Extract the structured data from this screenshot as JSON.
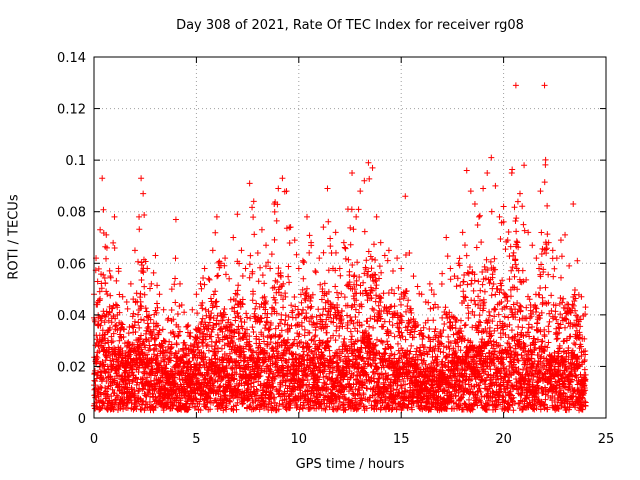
{
  "chart_data": {
    "type": "scatter",
    "title": "Day 308 of 2021, Rate Of TEC Index for receiver rg08",
    "xlabel": "GPS time / hours",
    "ylabel": "ROTI / TECUs",
    "xlim": [
      0,
      25
    ],
    "ylim": [
      0,
      0.14
    ],
    "xticks": [
      "0",
      "5",
      "10",
      "15",
      "20",
      "25"
    ],
    "yticks": [
      "0",
      "0.02",
      "0.04",
      "0.06",
      "0.08",
      "0.1",
      "0.12",
      "0.14"
    ],
    "grid": true,
    "marker": "+",
    "marker_color": "#ff0000",
    "series": [
      {
        "x": [
          0.0,
          0.1,
          0.3,
          0.4,
          0.6,
          0.8,
          1.0,
          1.2,
          1.4,
          1.6,
          1.8,
          2.0,
          2.2,
          2.3,
          2.4,
          2.6,
          2.8,
          3.0,
          3.2,
          3.4,
          3.6,
          3.8,
          4.0,
          4.2,
          4.4,
          4.6,
          4.8,
          5.0,
          5.2,
          5.4,
          5.6,
          5.8,
          6.0,
          6.2,
          6.4,
          6.6,
          6.8,
          7.0,
          7.2,
          7.4,
          7.6,
          7.8,
          8.0,
          8.2,
          8.4,
          8.6,
          8.8,
          9.0,
          9.2,
          9.4,
          9.6,
          9.8,
          10.0,
          10.2,
          10.4,
          10.6,
          10.8,
          11.0,
          11.2,
          11.4,
          11.6,
          11.8,
          12.0,
          12.2,
          12.4,
          12.6,
          12.8,
          13.0,
          13.2,
          13.4,
          13.6,
          13.8,
          14.0,
          14.2,
          14.4,
          14.6,
          14.8,
          15.0,
          15.2,
          15.4,
          15.6,
          15.8,
          16.0,
          16.2,
          16.4,
          16.6,
          16.8,
          17.0,
          17.2,
          17.4,
          17.6,
          17.8,
          18.0,
          18.2,
          18.4,
          18.6,
          18.8,
          19.0,
          19.2,
          19.4,
          19.6,
          19.8,
          20.0,
          20.2,
          20.4,
          20.6,
          20.8,
          21.0,
          21.2,
          21.4,
          21.6,
          21.8,
          22.0,
          22.2,
          22.4,
          22.6,
          22.8,
          23.0,
          23.2,
          23.4,
          23.6,
          23.8,
          24.0
        ],
        "y_max": [
          0.048,
          0.062,
          0.073,
          0.093,
          0.071,
          0.055,
          0.078,
          0.058,
          0.047,
          0.045,
          0.052,
          0.065,
          0.078,
          0.093,
          0.087,
          0.058,
          0.052,
          0.063,
          0.048,
          0.042,
          0.038,
          0.05,
          0.077,
          0.052,
          0.041,
          0.036,
          0.042,
          0.048,
          0.052,
          0.058,
          0.054,
          0.065,
          0.078,
          0.06,
          0.062,
          0.054,
          0.07,
          0.079,
          0.065,
          0.058,
          0.091,
          0.084,
          0.064,
          0.073,
          0.067,
          0.058,
          0.083,
          0.089,
          0.093,
          0.088,
          0.074,
          0.069,
          0.058,
          0.061,
          0.078,
          0.068,
          0.057,
          0.062,
          0.074,
          0.089,
          0.064,
          0.072,
          0.058,
          0.068,
          0.081,
          0.095,
          0.078,
          0.088,
          0.092,
          0.099,
          0.097,
          0.078,
          0.068,
          0.063,
          0.065,
          0.057,
          0.062,
          0.058,
          0.086,
          0.064,
          0.055,
          0.051,
          0.048,
          0.045,
          0.052,
          0.048,
          0.043,
          0.056,
          0.07,
          0.058,
          0.055,
          0.06,
          0.072,
          0.096,
          0.088,
          0.083,
          0.078,
          0.089,
          0.095,
          0.101,
          0.09,
          0.078,
          0.082,
          0.069,
          0.095,
          0.129,
          0.087,
          0.098,
          0.072,
          0.067,
          0.062,
          0.088,
          0.129,
          0.068,
          0.065,
          0.062,
          0.069,
          0.071,
          0.059,
          0.083,
          0.061,
          0.047,
          0.043
        ],
        "y_typical": [
          0.022,
          0.025,
          0.031,
          0.034,
          0.03,
          0.024,
          0.028,
          0.025,
          0.022,
          0.021,
          0.024,
          0.027,
          0.03,
          0.032,
          0.031,
          0.026,
          0.023,
          0.025,
          0.021,
          0.019,
          0.018,
          0.02,
          0.026,
          0.021,
          0.018,
          0.016,
          0.018,
          0.02,
          0.022,
          0.024,
          0.023,
          0.025,
          0.027,
          0.024,
          0.025,
          0.023,
          0.026,
          0.028,
          0.026,
          0.024,
          0.029,
          0.028,
          0.025,
          0.027,
          0.026,
          0.024,
          0.029,
          0.03,
          0.031,
          0.03,
          0.027,
          0.026,
          0.024,
          0.025,
          0.028,
          0.026,
          0.024,
          0.025,
          0.027,
          0.03,
          0.025,
          0.027,
          0.024,
          0.026,
          0.029,
          0.032,
          0.028,
          0.03,
          0.031,
          0.033,
          0.032,
          0.028,
          0.026,
          0.025,
          0.025,
          0.023,
          0.024,
          0.023,
          0.027,
          0.024,
          0.022,
          0.021,
          0.02,
          0.019,
          0.021,
          0.02,
          0.018,
          0.022,
          0.025,
          0.023,
          0.022,
          0.024,
          0.026,
          0.031,
          0.029,
          0.028,
          0.027,
          0.03,
          0.031,
          0.033,
          0.03,
          0.027,
          0.028,
          0.025,
          0.03,
          0.036,
          0.029,
          0.031,
          0.026,
          0.025,
          0.024,
          0.028,
          0.034,
          0.025,
          0.024,
          0.024,
          0.025,
          0.026,
          0.023,
          0.027,
          0.023,
          0.019,
          0.018
        ],
        "y_floor": 0.003
      }
    ]
  }
}
